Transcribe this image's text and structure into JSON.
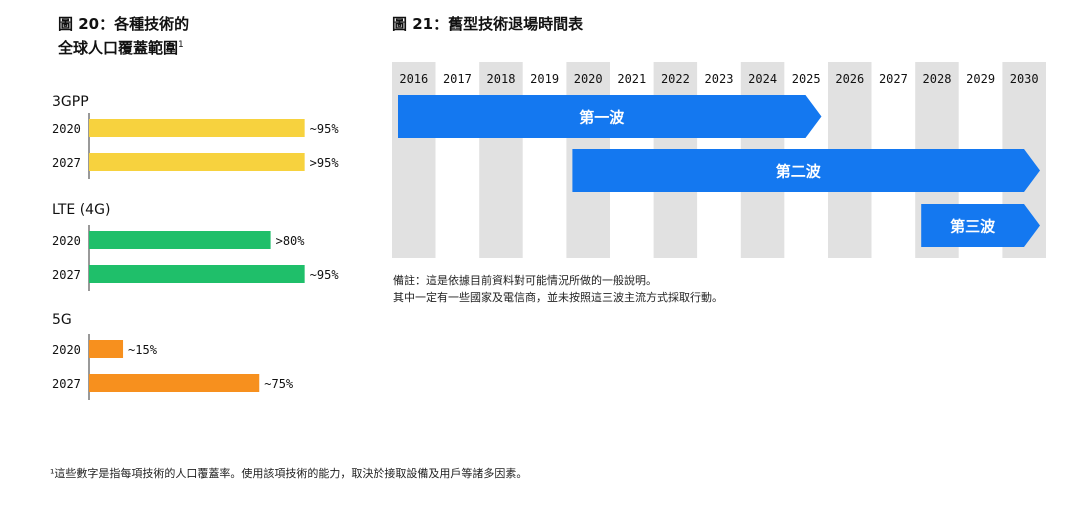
{
  "figure20": {
    "title_line1": "圖 20：各種技術的",
    "title_line2": "全球人口覆蓋範圍",
    "title_sup": "1"
  },
  "figure21": {
    "title": "圖 21：舊型技術退場時間表"
  },
  "chart_data": [
    {
      "type": "bar",
      "orientation": "horizontal",
      "xlim": [
        0,
        100
      ],
      "groups": [
        {
          "name": "3GPP",
          "color": "#f7d23e",
          "bars": [
            {
              "year": "2020",
              "value": 95,
              "label": "~95%"
            },
            {
              "year": "2027",
              "value": 95,
              "label": ">95%"
            }
          ]
        },
        {
          "name": "LTE (4G)",
          "color": "#1fbf6a",
          "bars": [
            {
              "year": "2020",
              "value": 80,
              "label": ">80%"
            },
            {
              "year": "2027",
              "value": 95,
              "label": "~95%"
            }
          ]
        },
        {
          "name": "5G",
          "color": "#f7901e",
          "bars": [
            {
              "year": "2020",
              "value": 15,
              "label": "~15%"
            },
            {
              "year": "2027",
              "value": 75,
              "label": "~75%"
            }
          ]
        }
      ]
    },
    {
      "type": "timeline",
      "years": [
        "2016",
        "2017",
        "2018",
        "2019",
        "2020",
        "2021",
        "2022",
        "2023",
        "2024",
        "2025",
        "2026",
        "2027",
        "2028",
        "2029",
        "2030"
      ],
      "arrow_color": "#1478f0",
      "waves": [
        {
          "label": "第一波",
          "start": "2016",
          "end": "2025"
        },
        {
          "label": "第二波",
          "start": "2020",
          "end": "2030"
        },
        {
          "label": "第三波",
          "start": "2028",
          "end": "2030"
        }
      ]
    }
  ],
  "note": {
    "line1": "備註：這是依據目前資料對可能情況所做的一般說明。",
    "line2": "其中一定有一些國家及電信商，並未按照這三波主流方式採取行動。"
  },
  "footnote": "¹這些數字是指每項技術的人口覆蓋率。使用該項技術的能力，取決於接取設備及用戶等諸多因素。"
}
